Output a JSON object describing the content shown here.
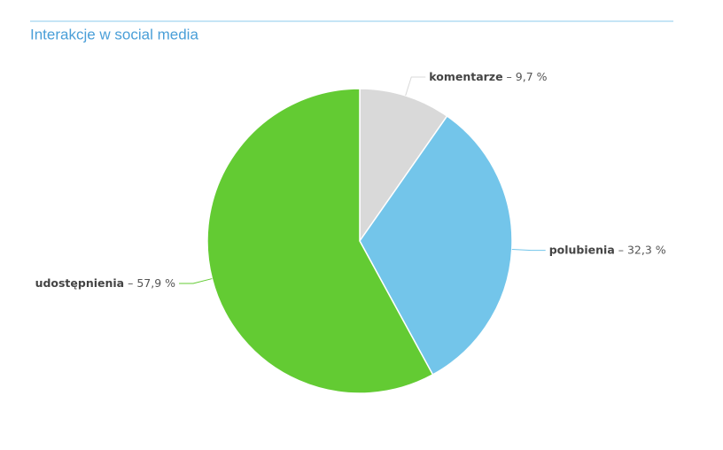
{
  "chart_data": {
    "type": "pie",
    "title": "Interakcje w social media",
    "categories": [
      "komentarze",
      "polubienia",
      "udostępnienia"
    ],
    "values": [
      9.7,
      32.3,
      57.9
    ],
    "value_labels": [
      "9,7 %",
      "32,3 %",
      "57,9 %"
    ],
    "label_separator": "–",
    "colors": [
      "#d9d9d9",
      "#73c5ea",
      "#63cb33"
    ]
  }
}
